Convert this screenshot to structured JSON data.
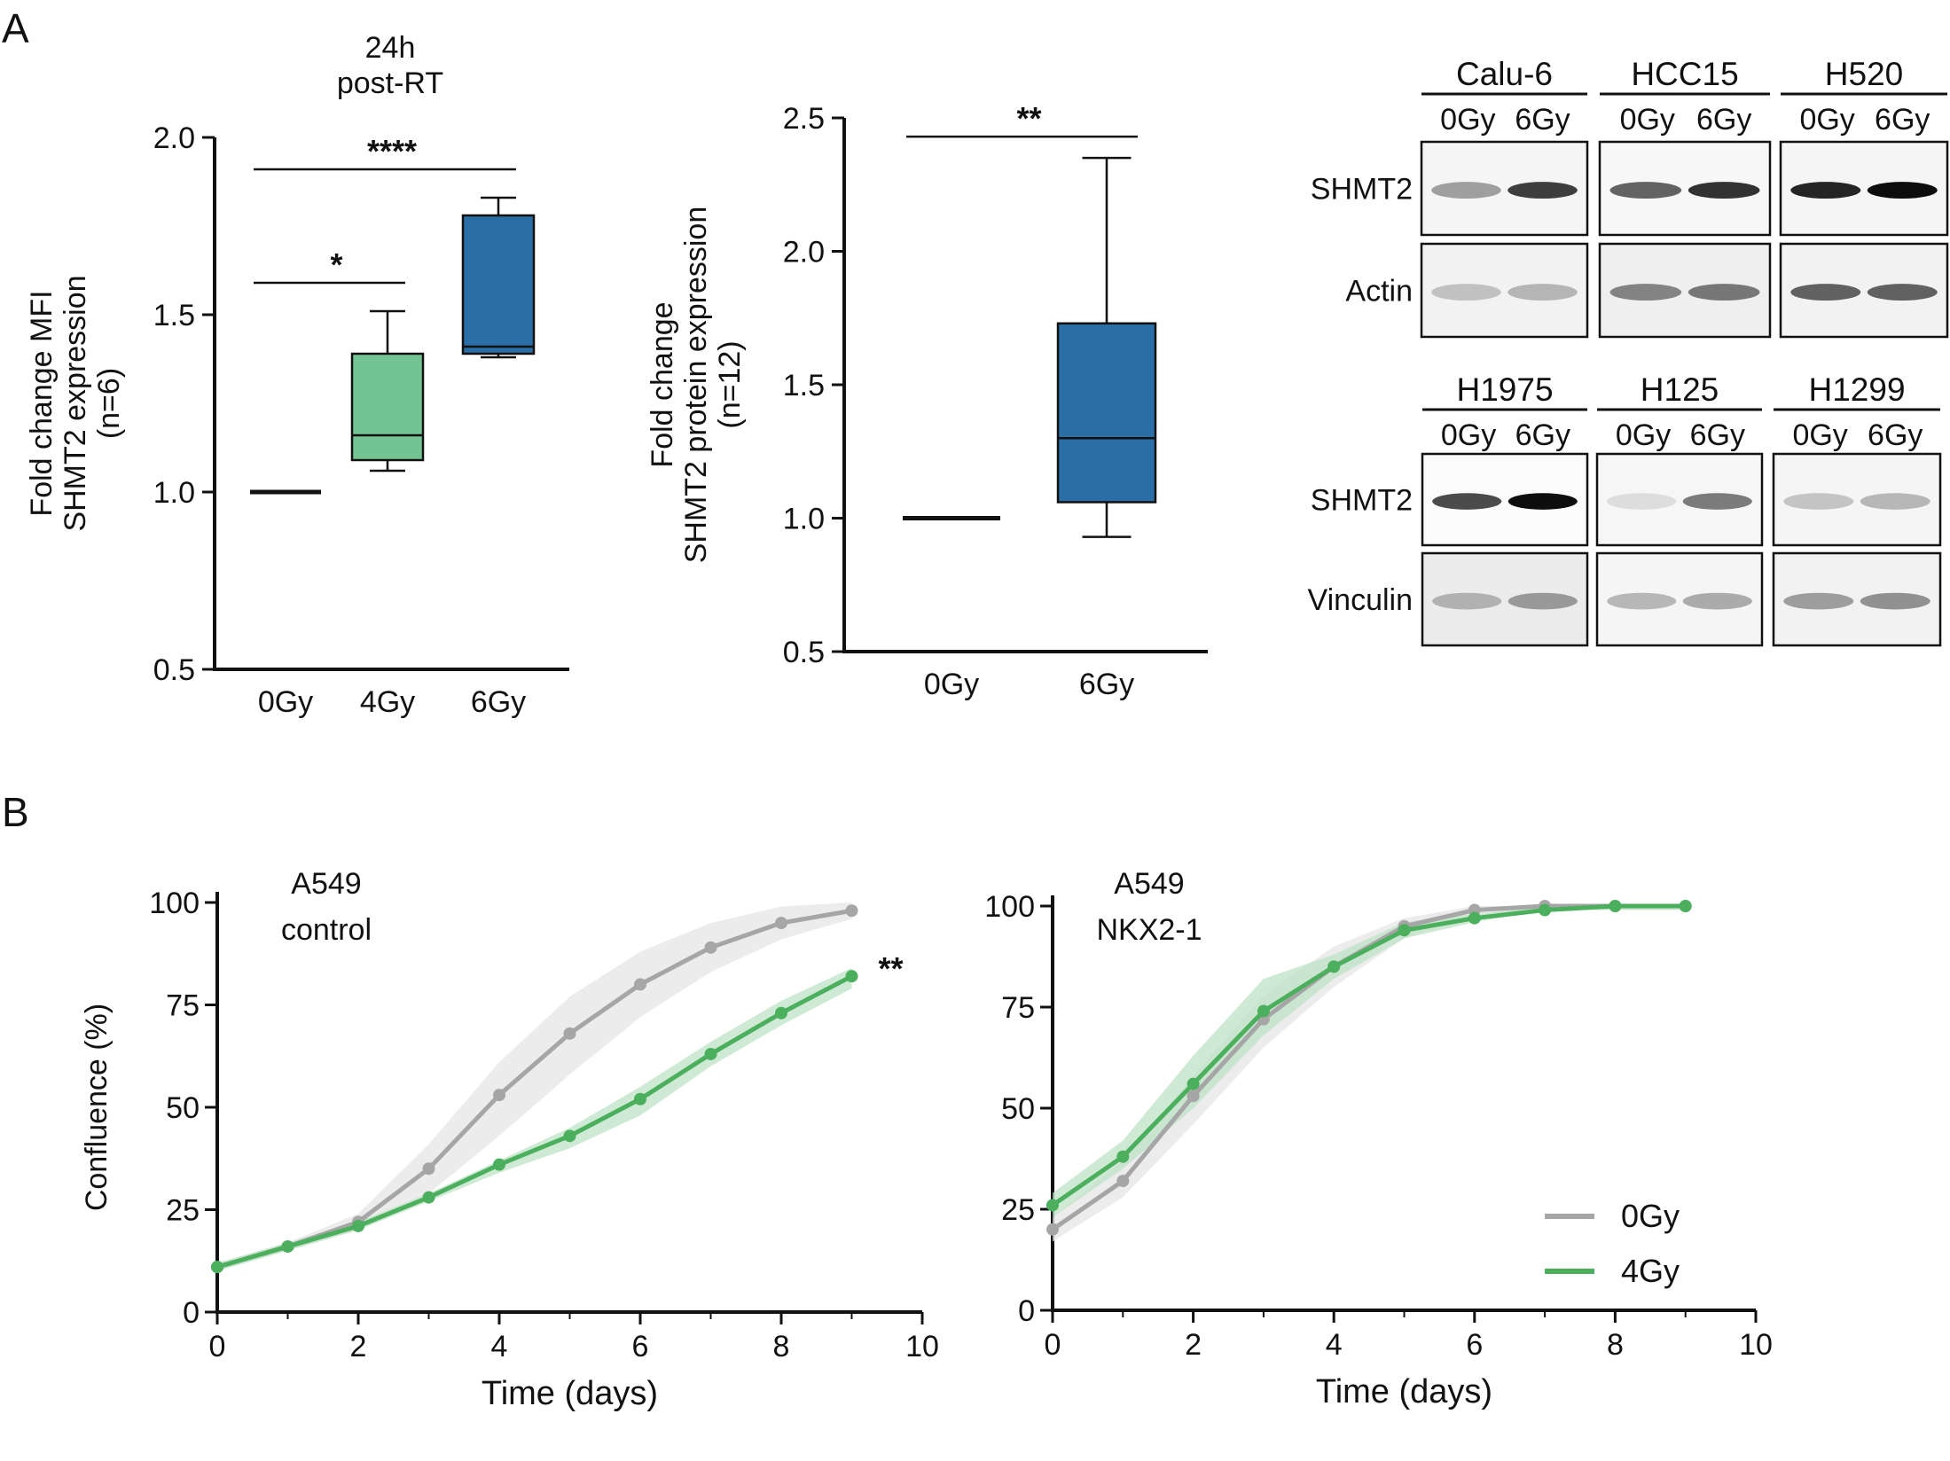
{
  "panel_labels": {
    "a": "A",
    "b": "B"
  },
  "chart_data": [
    {
      "id": "chart1",
      "type": "boxplot",
      "title": "24h\npost-RT",
      "title_lines": [
        "24h",
        "post-RT"
      ],
      "xlabel": "",
      "ylabel_lines": [
        "Fold change  MFI",
        "SHMT2 expression",
        "(n=6)"
      ],
      "categories": [
        "0Gy",
        "4Gy",
        "6Gy"
      ],
      "ylim": [
        0.5,
        2.0
      ],
      "yticks": [
        "0.5",
        "1.0",
        "1.5",
        "2.0"
      ],
      "ytick_values": [
        0.5,
        1.0,
        1.5,
        2.0
      ],
      "boxes": [
        {
          "category": "0Gy",
          "min": 1.0,
          "q1": 1.0,
          "median": 1.0,
          "q3": 1.0,
          "max": 1.0,
          "color": "#000000"
        },
        {
          "category": "4Gy",
          "min": 1.06,
          "q1": 1.09,
          "median": 1.16,
          "q3": 1.39,
          "max": 1.51,
          "color": "#74c493"
        },
        {
          "category": "6Gy",
          "min": 1.38,
          "q1": 1.39,
          "median": 1.41,
          "q3": 1.78,
          "max": 1.83,
          "color": "#2a6ea6"
        }
      ],
      "significance": [
        {
          "from": "0Gy",
          "to": "4Gy",
          "label": "*",
          "y": 1.59
        },
        {
          "from": "0Gy",
          "to": "6Gy",
          "label": "****",
          "y": 1.91
        }
      ]
    },
    {
      "id": "chart2",
      "type": "boxplot",
      "title": "",
      "ylabel_lines": [
        "Fold change",
        "SHMT2 protein expression",
        "(n=12)"
      ],
      "categories": [
        "0Gy",
        "6Gy"
      ],
      "ylim": [
        0.5,
        2.5
      ],
      "yticks": [
        "0.5",
        "1.0",
        "1.5",
        "2.0",
        "2.5"
      ],
      "ytick_values": [
        0.5,
        1.0,
        1.5,
        2.0,
        2.5
      ],
      "boxes": [
        {
          "category": "0Gy",
          "min": 1.0,
          "q1": 1.0,
          "median": 1.0,
          "q3": 1.0,
          "max": 1.0,
          "color": "#000000"
        },
        {
          "category": "6Gy",
          "min": 0.93,
          "q1": 1.06,
          "median": 1.3,
          "q3": 1.73,
          "max": 2.35,
          "color": "#2a6ea6"
        }
      ],
      "significance": [
        {
          "from": "0Gy",
          "to": "6Gy",
          "label": "**",
          "y": 2.43
        }
      ]
    },
    {
      "id": "chart3",
      "type": "line",
      "title_lines": [
        "A549",
        "control"
      ],
      "xlabel": "Time (days)",
      "ylabel": "Confluence (%)",
      "xlim": [
        0,
        10
      ],
      "ylim": [
        0,
        100
      ],
      "xticks": [
        0,
        2,
        4,
        6,
        8,
        10
      ],
      "yticks": [
        0,
        25,
        50,
        75,
        100
      ],
      "x": [
        0,
        1,
        2,
        3,
        4,
        5,
        6,
        7,
        8,
        9
      ],
      "series": [
        {
          "name": "0Gy",
          "color": "#a6a6a6",
          "band": "#e6e6e6",
          "values": [
            11,
            16,
            22,
            35,
            53,
            68,
            80,
            89,
            95,
            98
          ],
          "band_lo": [
            10,
            15,
            20,
            29,
            43,
            58,
            72,
            83,
            91,
            96
          ],
          "band_hi": [
            12,
            17,
            24,
            41,
            61,
            77,
            88,
            95,
            99,
            100
          ]
        },
        {
          "name": "4Gy",
          "color": "#4caf5e",
          "band": "#bfe3c6",
          "values": [
            11,
            16,
            21,
            28,
            36,
            43,
            52,
            63,
            73,
            82
          ],
          "band_lo": [
            10,
            15,
            20,
            27,
            34,
            40,
            48,
            60,
            70,
            79
          ],
          "band_hi": [
            12,
            17,
            22,
            29,
            37,
            45,
            55,
            66,
            76,
            84
          ]
        }
      ],
      "annotation": "**"
    },
    {
      "id": "chart4",
      "type": "line",
      "title_lines": [
        "A549",
        "NKX2-1"
      ],
      "xlabel": "Time (days)",
      "ylabel": "",
      "xlim": [
        0,
        10
      ],
      "ylim": [
        0,
        100
      ],
      "xticks": [
        0,
        2,
        4,
        6,
        8,
        10
      ],
      "yticks": [
        0,
        25,
        50,
        75,
        100
      ],
      "x": [
        0,
        1,
        2,
        3,
        4,
        5,
        6,
        7,
        8,
        9
      ],
      "series": [
        {
          "name": "0Gy",
          "color": "#a6a6a6",
          "band": "#e6e6e6",
          "values": [
            20,
            32,
            53,
            72,
            85,
            95,
            99,
            100,
            100,
            100
          ],
          "band_lo": [
            17,
            28,
            46,
            65,
            80,
            92,
            98,
            99,
            99,
            99
          ],
          "band_hi": [
            23,
            37,
            58,
            78,
            90,
            97,
            100,
            100,
            100,
            100
          ]
        },
        {
          "name": "4Gy",
          "color": "#4caf5e",
          "band": "#bfe3c6",
          "values": [
            26,
            38,
            56,
            74,
            85,
            94,
            97,
            99,
            100,
            100
          ],
          "band_lo": [
            23,
            35,
            50,
            68,
            82,
            92,
            96,
            99,
            99,
            99
          ],
          "band_hi": [
            29,
            42,
            63,
            82,
            88,
            96,
            98,
            100,
            100,
            100
          ]
        }
      ],
      "legend": {
        "placement": "bottom-right",
        "entries": [
          "0Gy",
          "4Gy"
        ]
      }
    }
  ],
  "blots": {
    "top": {
      "cell_lines": [
        "Calu-6",
        "HCC15",
        "H520"
      ],
      "lanes": [
        "0Gy",
        "6Gy"
      ],
      "rows": [
        "SHMT2",
        "Actin"
      ]
    },
    "bottom": {
      "cell_lines": [
        "H1975",
        "H125",
        "H1299"
      ],
      "lanes": [
        "0Gy",
        "6Gy"
      ],
      "rows": [
        "SHMT2",
        "Vinculin"
      ]
    }
  }
}
